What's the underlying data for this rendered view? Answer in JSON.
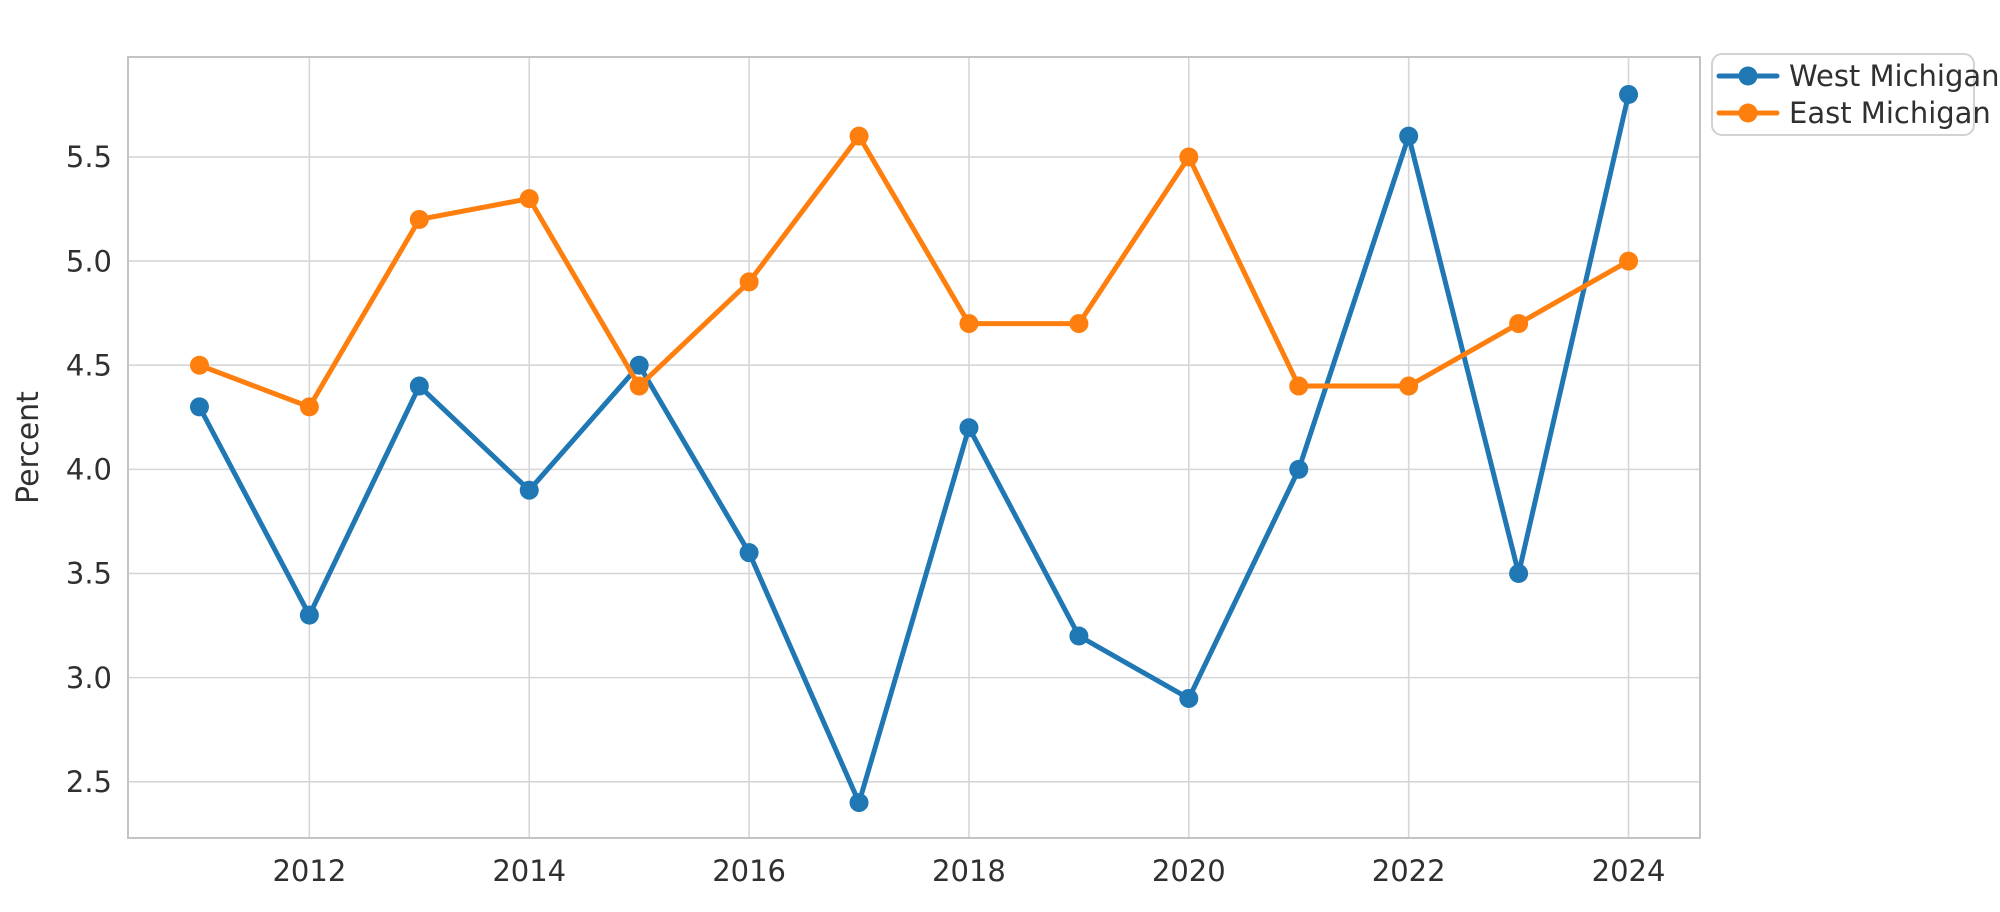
{
  "figure": {
    "background_color": "#ffffff"
  },
  "chart_data": {
    "type": "line",
    "title": "",
    "xlabel": "",
    "ylabel": "Percent",
    "x": [
      2011,
      2012,
      2013,
      2014,
      2015,
      2016,
      2017,
      2018,
      2019,
      2020,
      2021,
      2022,
      2023,
      2024
    ],
    "series": [
      {
        "name": "West Michigan",
        "color": "#1f77b4",
        "marker": "circle",
        "values": [
          4.3,
          3.3,
          4.4,
          3.9,
          4.5,
          3.6,
          2.4,
          4.2,
          3.2,
          2.9,
          4.0,
          5.6,
          3.5,
          5.8
        ]
      },
      {
        "name": "East Michigan",
        "color": "#ff7f0e",
        "marker": "circle",
        "values": [
          4.5,
          4.3,
          5.2,
          5.3,
          4.4,
          4.9,
          5.6,
          4.7,
          4.7,
          5.5,
          4.4,
          4.4,
          4.7,
          5.0
        ]
      }
    ],
    "xticks": [
      2012,
      2014,
      2016,
      2018,
      2020,
      2022,
      2024
    ],
    "xtick_labels": [
      "2012",
      "2014",
      "2016",
      "2018",
      "2020",
      "2022",
      "2024"
    ],
    "yticks": [
      2.5,
      3.0,
      3.5,
      4.0,
      4.5,
      5.0,
      5.5
    ],
    "ytick_labels": [
      "2.5",
      "3.0",
      "3.5",
      "4.0",
      "4.5",
      "5.0",
      "5.5"
    ],
    "xlim": [
      2010.35,
      2024.65
    ],
    "ylim": [
      2.23,
      5.98
    ],
    "grid": true,
    "legend": {
      "position": "outside-top-right",
      "entries": [
        "West Michigan",
        "East Michigan"
      ]
    },
    "style": {
      "line_width": 5,
      "marker_radius": 9.5,
      "grid_color": "#d6d6d6",
      "spine_color": "#c3c3c3",
      "text_color": "#303030"
    }
  }
}
